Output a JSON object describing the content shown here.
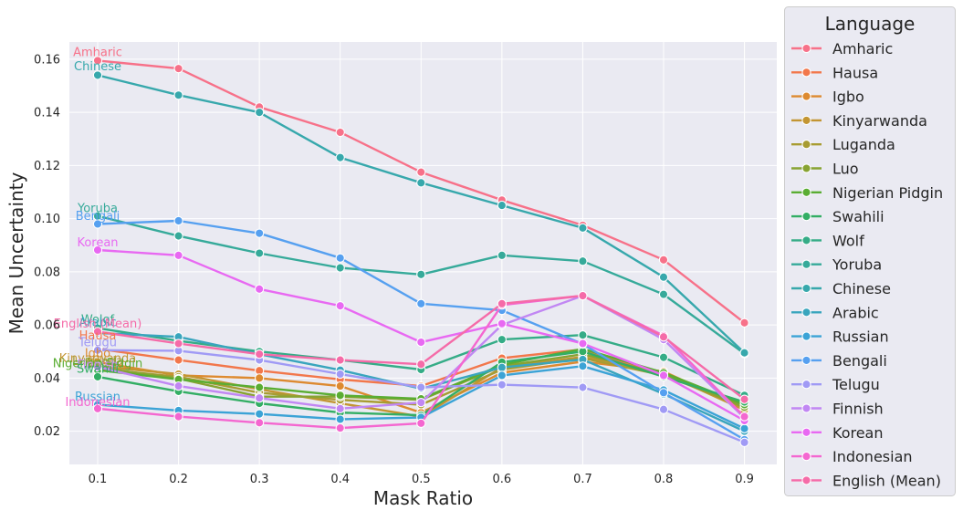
{
  "chart_data": {
    "type": "line",
    "title": "",
    "xlabel": "Mask Ratio",
    "ylabel": "Mean Uncertainty",
    "x": [
      0.1,
      0.2,
      0.3,
      0.4,
      0.5,
      0.6,
      0.7,
      0.8,
      0.9
    ],
    "x_tick_labels": [
      "0.1",
      "0.2",
      "0.3",
      "0.4",
      "0.5",
      "0.6",
      "0.7",
      "0.8",
      "0.9"
    ],
    "xlim": [
      0.065,
      0.94
    ],
    "ylim": [
      0.0075,
      0.1665
    ],
    "y_ticks": [
      0.02,
      0.04,
      0.06,
      0.08,
      0.1,
      0.12,
      0.14,
      0.16
    ],
    "y_tick_labels": [
      "0.02",
      "0.04",
      "0.06",
      "0.08",
      "0.10",
      "0.12",
      "0.14",
      "0.16"
    ],
    "grid": true,
    "legend": {
      "title": "Language",
      "placement": "outside-right"
    },
    "series": [
      {
        "name": "Amharic",
        "color": "#f77189",
        "values": [
          0.1595,
          0.1565,
          0.142,
          0.1325,
          0.1175,
          0.107,
          0.0975,
          0.0845,
          0.0608
        ]
      },
      {
        "name": "Hausa",
        "color": "#f2774b",
        "values": [
          0.051,
          0.0468,
          0.0428,
          0.0395,
          0.037,
          0.0475,
          0.0508,
          0.0412,
          0.029
        ]
      },
      {
        "name": "Igbo",
        "color": "#dd8a30",
        "values": [
          0.046,
          0.041,
          0.04,
          0.037,
          0.027,
          0.042,
          0.0462,
          0.0425,
          0.0285
        ]
      },
      {
        "name": "Kinyarwanda",
        "color": "#c39532",
        "values": [
          0.0445,
          0.0415,
          0.0358,
          0.0305,
          0.0255,
          0.044,
          0.048,
          0.0418,
          0.028
        ]
      },
      {
        "name": "Luganda",
        "color": "#a89c32",
        "values": [
          0.0435,
          0.0405,
          0.0345,
          0.0318,
          0.03,
          0.0432,
          0.0475,
          0.041,
          0.0298
        ]
      },
      {
        "name": "Luo",
        "color": "#88a332",
        "values": [
          0.044,
          0.0398,
          0.033,
          0.033,
          0.0318,
          0.0445,
          0.049,
          0.0415,
          0.029
        ]
      },
      {
        "name": "Nigerian Pidgin",
        "color": "#5aad33",
        "values": [
          0.043,
          0.0395,
          0.0365,
          0.0335,
          0.0322,
          0.045,
          0.051,
          0.042,
          0.03
        ]
      },
      {
        "name": "Swahili",
        "color": "#33ae64",
        "values": [
          0.0405,
          0.035,
          0.0305,
          0.027,
          0.026,
          0.046,
          0.05,
          0.0405,
          0.031
        ]
      },
      {
        "name": "Wolf",
        "color": "#35ac87",
        "values": [
          0.0588,
          0.054,
          0.05,
          0.0468,
          0.0432,
          0.0545,
          0.0562,
          0.0478,
          0.0335
        ]
      },
      {
        "name": "Yoruba",
        "color": "#36aa9a",
        "values": [
          0.101,
          0.0935,
          0.087,
          0.0815,
          0.079,
          0.0862,
          0.084,
          0.0715,
          0.0492
        ]
      },
      {
        "name": "Chinese",
        "color": "#37a8ac",
        "values": [
          0.154,
          0.1465,
          0.14,
          0.123,
          0.1135,
          0.105,
          0.0965,
          0.078,
          0.0495
        ]
      },
      {
        "name": "Arabic",
        "color": "#39a5bd",
        "values": [
          0.057,
          0.0555,
          0.049,
          0.043,
          0.036,
          0.044,
          0.047,
          0.034,
          0.02
        ]
      },
      {
        "name": "Russian",
        "color": "#3ba3d6",
        "values": [
          0.03,
          0.0278,
          0.0265,
          0.0245,
          0.0252,
          0.041,
          0.0445,
          0.0355,
          0.021
        ]
      },
      {
        "name": "Bengali",
        "color": "#56a0f0",
        "values": [
          0.098,
          0.0992,
          0.0945,
          0.0852,
          0.068,
          0.0655,
          0.0528,
          0.0345,
          0.0168
        ]
      },
      {
        "name": "Telugu",
        "color": "#a09af5",
        "values": [
          0.0505,
          0.0503,
          0.0468,
          0.0415,
          0.0365,
          0.0375,
          0.0365,
          0.0282,
          0.0158
        ]
      },
      {
        "name": "Finnish",
        "color": "#c187f3",
        "values": [
          0.0442,
          0.037,
          0.0325,
          0.0285,
          0.0308,
          0.06,
          0.071,
          0.0545,
          0.025
        ]
      },
      {
        "name": "Korean",
        "color": "#e869f2",
        "values": [
          0.0882,
          0.0862,
          0.0735,
          0.0672,
          0.0535,
          0.0605,
          0.053,
          0.041,
          0.024
        ]
      },
      {
        "name": "Indonesian",
        "color": "#f467d0",
        "values": [
          0.0285,
          0.0255,
          0.0232,
          0.0212,
          0.023,
          0.0675,
          0.071,
          0.056,
          0.0255
        ]
      },
      {
        "name": "English (Mean)",
        "color": "#f56ba8",
        "values": [
          0.0575,
          0.053,
          0.049,
          0.0468,
          0.0452,
          0.068,
          0.071,
          0.0555,
          0.032
        ]
      }
    ],
    "annotations": [
      {
        "text": "Amharic",
        "series": "Amharic",
        "x": 0.1,
        "y": 0.1612
      },
      {
        "text": "Chinese",
        "series": "Chinese",
        "x": 0.1,
        "y": 0.1558
      },
      {
        "text": "Yoruba",
        "series": "Yoruba",
        "x": 0.1,
        "y": 0.1025
      },
      {
        "text": "Bengali",
        "series": "Bengali",
        "x": 0.1,
        "y": 0.0995
      },
      {
        "text": "Korean",
        "series": "Korean",
        "x": 0.1,
        "y": 0.0895
      },
      {
        "text": "Wolof",
        "series": "Wolf",
        "x": 0.1,
        "y": 0.0605
      },
      {
        "text": "Arabic",
        "series": "Arabic",
        "x": 0.1,
        "y": 0.0595
      },
      {
        "text": "English (Mean)",
        "series": "English (Mean)",
        "x": 0.1,
        "y": 0.059
      },
      {
        "text": "Hausa",
        "series": "Hausa",
        "x": 0.1,
        "y": 0.0545
      },
      {
        "text": "Telugu",
        "series": "Telugu",
        "x": 0.1,
        "y": 0.052
      },
      {
        "text": "Igbo",
        "series": "Igbo",
        "x": 0.1,
        "y": 0.0478
      },
      {
        "text": "Kinyarwanda",
        "series": "Kinyarwanda",
        "x": 0.1,
        "y": 0.046
      },
      {
        "text": "Luganda",
        "series": "Luganda",
        "x": 0.1,
        "y": 0.045
      },
      {
        "text": "Luo",
        "series": "Luo",
        "x": 0.1,
        "y": 0.0445
      },
      {
        "text": "Nigerian Pidgin",
        "series": "Nigerian Pidgin",
        "x": 0.1,
        "y": 0.044
      },
      {
        "text": "Finnish",
        "series": "Finnish",
        "x": 0.1,
        "y": 0.0435
      },
      {
        "text": "Swahili",
        "series": "Swahili",
        "x": 0.1,
        "y": 0.042
      },
      {
        "text": "Russian",
        "series": "Russian",
        "x": 0.1,
        "y": 0.0315
      },
      {
        "text": "Indonesian",
        "series": "Indonesian",
        "x": 0.1,
        "y": 0.0295
      }
    ]
  }
}
